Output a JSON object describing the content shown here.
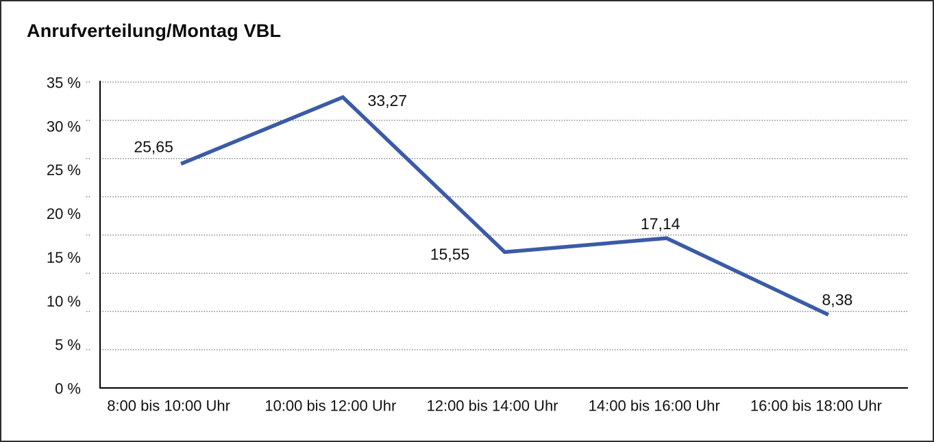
{
  "chart_data": {
    "type": "line",
    "title": "Anrufverteilung/Montag VBL",
    "categories": [
      "8:00 bis 10:00 Uhr",
      "10:00 bis 12:00 Uhr",
      "12:00 bis 14:00 Uhr",
      "14:00 bis 16:00 Uhr",
      "16:00 bis 18:00 Uhr"
    ],
    "values": [
      25.65,
      33.27,
      15.55,
      17.14,
      8.38
    ],
    "value_labels": [
      "25,65",
      "33,27",
      "15,55",
      "17,14",
      "8,38"
    ],
    "xlabel": "",
    "ylabel": "",
    "ylim": [
      0,
      35
    ],
    "ytick_step": 5,
    "ytick_labels": [
      "35 %",
      "30 %",
      "25 %",
      "20 %",
      "15 %",
      "10 %",
      "5 %",
      "0 %"
    ],
    "grid": "horizontal-dotted",
    "legend": "none",
    "line_color": "#3b5ba6",
    "axis_color": "#000000",
    "gridline_color": "#5a5a5a",
    "text_color": "#111111"
  }
}
